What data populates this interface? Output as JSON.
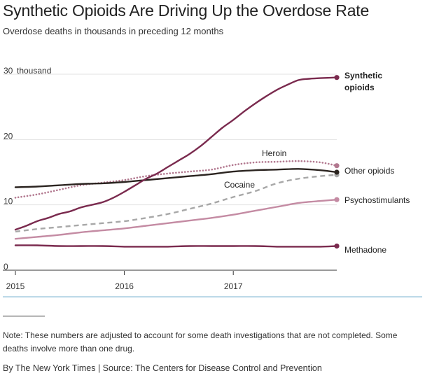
{
  "header": {
    "title": "Synthetic Opioids Are Driving Up the Overdose Rate",
    "subtitle": "Overdose deaths in thousands in preceding 12 months"
  },
  "footer": {
    "note": "Note: These numbers are adjusted to account for some death investigations that are not completed. Some deaths involve more than one drug.",
    "credit": "By The New York Times | Source: The Centers for Disease Control and Prevention"
  },
  "chart_data": {
    "type": "line",
    "title": "Synthetic Opioids Are Driving Up the Overdose Rate",
    "subtitle": "Overdose deaths in thousands in preceding 12 months",
    "xlabel": "",
    "ylabel": "thousand",
    "xlim": [
      2015.0,
      2017.95
    ],
    "ylim": [
      0,
      30
    ],
    "y_ticks": [
      0,
      10,
      20,
      30
    ],
    "y_tick_labels": [
      "0",
      "10",
      "20",
      "30"
    ],
    "y_unit_label": "thousand",
    "x_ticks": [
      2015,
      2016,
      2017
    ],
    "x_tick_labels": [
      "2015",
      "2016",
      "2017"
    ],
    "grid": true,
    "series": [
      {
        "name": "Synthetic opioids",
        "label_lines": [
          "Synthetic",
          "opioids"
        ],
        "bold": true,
        "color": "#7a2a4e",
        "style": "solid",
        "end_value": 29.5,
        "points": [
          [
            2015.0,
            6.2
          ],
          [
            2015.1,
            6.8
          ],
          [
            2015.2,
            7.5
          ],
          [
            2015.3,
            8.0
          ],
          [
            2015.4,
            8.6
          ],
          [
            2015.5,
            9.0
          ],
          [
            2015.6,
            9.6
          ],
          [
            2015.7,
            10.0
          ],
          [
            2015.8,
            10.4
          ],
          [
            2015.9,
            11.1
          ],
          [
            2016.0,
            12.0
          ],
          [
            2016.1,
            13.0
          ],
          [
            2016.2,
            14.0
          ],
          [
            2016.3,
            14.8
          ],
          [
            2016.4,
            15.8
          ],
          [
            2016.5,
            16.8
          ],
          [
            2016.6,
            17.8
          ],
          [
            2016.7,
            19.0
          ],
          [
            2016.8,
            20.4
          ],
          [
            2016.9,
            21.8
          ],
          [
            2017.0,
            23.0
          ],
          [
            2017.1,
            24.3
          ],
          [
            2017.2,
            25.5
          ],
          [
            2017.3,
            26.6
          ],
          [
            2017.4,
            27.6
          ],
          [
            2017.5,
            28.4
          ],
          [
            2017.6,
            29.1
          ],
          [
            2017.7,
            29.3
          ],
          [
            2017.8,
            29.4
          ],
          [
            2017.95,
            29.5
          ]
        ]
      },
      {
        "name": "Heroin",
        "label_lines": [
          "Heroin"
        ],
        "bold": false,
        "color": "#b2788f",
        "style": "dotted",
        "end_value": 16.0,
        "points": [
          [
            2015.0,
            11.1
          ],
          [
            2015.2,
            11.6
          ],
          [
            2015.4,
            12.3
          ],
          [
            2015.6,
            13.0
          ],
          [
            2015.8,
            13.4
          ],
          [
            2016.0,
            13.8
          ],
          [
            2016.2,
            14.4
          ],
          [
            2016.4,
            14.8
          ],
          [
            2016.6,
            15.1
          ],
          [
            2016.8,
            15.4
          ],
          [
            2017.0,
            16.1
          ],
          [
            2017.2,
            16.5
          ],
          [
            2017.4,
            16.6
          ],
          [
            2017.6,
            16.7
          ],
          [
            2017.8,
            16.5
          ],
          [
            2017.95,
            16.0
          ]
        ]
      },
      {
        "name": "Other opioids",
        "label_lines": [
          "Other opioids"
        ],
        "bold": false,
        "color": "#2b2420",
        "style": "solid",
        "end_value": 15.0,
        "points": [
          [
            2015.0,
            12.7
          ],
          [
            2015.2,
            12.8
          ],
          [
            2015.4,
            13.0
          ],
          [
            2015.6,
            13.2
          ],
          [
            2015.8,
            13.3
          ],
          [
            2016.0,
            13.5
          ],
          [
            2016.2,
            13.8
          ],
          [
            2016.4,
            14.1
          ],
          [
            2016.6,
            14.4
          ],
          [
            2016.8,
            14.7
          ],
          [
            2017.0,
            15.1
          ],
          [
            2017.2,
            15.3
          ],
          [
            2017.4,
            15.4
          ],
          [
            2017.6,
            15.5
          ],
          [
            2017.8,
            15.3
          ],
          [
            2017.95,
            15.0
          ]
        ]
      },
      {
        "name": "Cocaine",
        "label_lines": [
          "Cocaine"
        ],
        "bold": false,
        "color": "#a8a8a8",
        "style": "dashed",
        "end_value": 14.6,
        "points": [
          [
            2015.0,
            5.9
          ],
          [
            2015.2,
            6.3
          ],
          [
            2015.4,
            6.6
          ],
          [
            2015.6,
            6.9
          ],
          [
            2015.8,
            7.2
          ],
          [
            2016.0,
            7.5
          ],
          [
            2016.2,
            8.0
          ],
          [
            2016.4,
            8.6
          ],
          [
            2016.6,
            9.4
          ],
          [
            2016.8,
            10.2
          ],
          [
            2017.0,
            11.2
          ],
          [
            2017.2,
            12.1
          ],
          [
            2017.4,
            13.3
          ],
          [
            2017.6,
            14.0
          ],
          [
            2017.8,
            14.4
          ],
          [
            2017.95,
            14.6
          ]
        ]
      },
      {
        "name": "Psychostimulants",
        "label_lines": [
          "Psychostimulants"
        ],
        "bold": false,
        "color": "#c48ba3",
        "style": "solid",
        "end_value": 10.8,
        "points": [
          [
            2015.0,
            4.8
          ],
          [
            2015.2,
            5.1
          ],
          [
            2015.4,
            5.4
          ],
          [
            2015.6,
            5.8
          ],
          [
            2015.8,
            6.1
          ],
          [
            2016.0,
            6.4
          ],
          [
            2016.2,
            6.8
          ],
          [
            2016.4,
            7.2
          ],
          [
            2016.6,
            7.6
          ],
          [
            2016.8,
            8.0
          ],
          [
            2017.0,
            8.5
          ],
          [
            2017.2,
            9.1
          ],
          [
            2017.4,
            9.7
          ],
          [
            2017.6,
            10.3
          ],
          [
            2017.8,
            10.6
          ],
          [
            2017.95,
            10.8
          ]
        ]
      },
      {
        "name": "Methadone",
        "label_lines": [
          "Methadone"
        ],
        "bold": false,
        "color": "#7a2a4e",
        "style": "solid",
        "end_value": 3.7,
        "points": [
          [
            2015.0,
            3.8
          ],
          [
            2015.2,
            3.8
          ],
          [
            2015.4,
            3.7
          ],
          [
            2015.6,
            3.7
          ],
          [
            2015.8,
            3.7
          ],
          [
            2016.0,
            3.6
          ],
          [
            2016.2,
            3.6
          ],
          [
            2016.4,
            3.6
          ],
          [
            2016.6,
            3.7
          ],
          [
            2016.8,
            3.7
          ],
          [
            2017.0,
            3.7
          ],
          [
            2017.2,
            3.7
          ],
          [
            2017.4,
            3.6
          ],
          [
            2017.6,
            3.6
          ],
          [
            2017.8,
            3.6
          ],
          [
            2017.95,
            3.7
          ]
        ]
      }
    ]
  }
}
